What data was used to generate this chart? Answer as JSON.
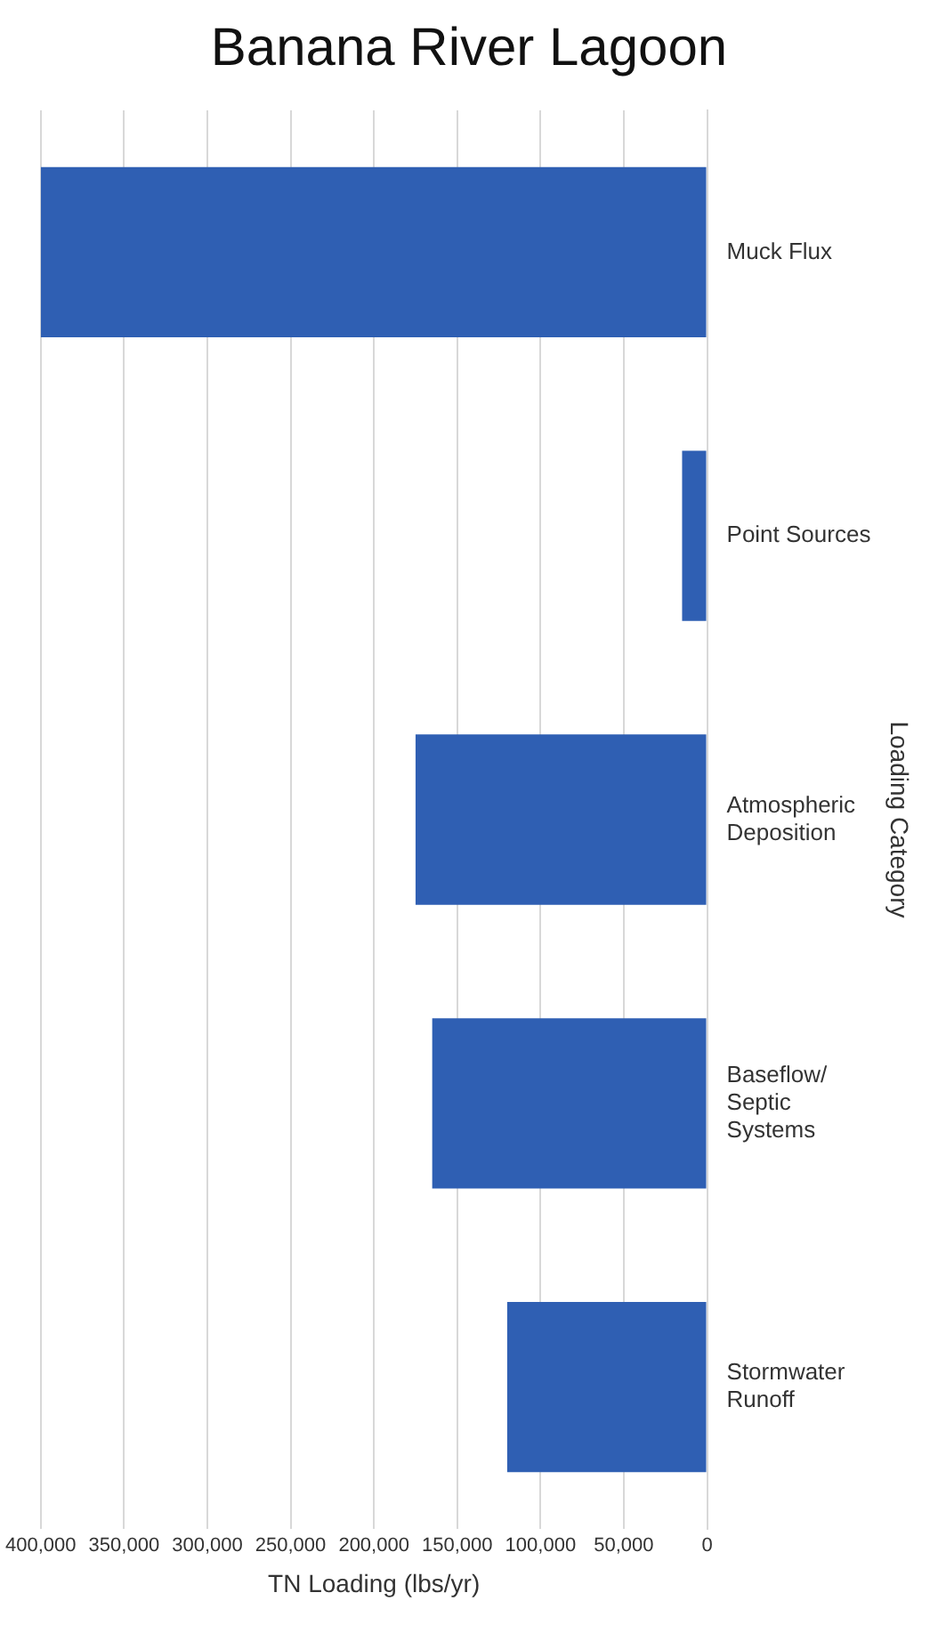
{
  "chart_data": {
    "type": "bar",
    "orientation": "horizontal",
    "title": "Banana River Lagoon",
    "xlabel": "TN Loading (lbs/yr)",
    "ylabel": "Loading Category",
    "categories": [
      "Muck Flux",
      "Point Sources",
      "Atmospheric Deposition",
      "Baseflow/Septic Systems",
      "Stormwater Runoff"
    ],
    "values": [
      400000,
      15000,
      175000,
      165000,
      120000
    ],
    "color": "#2f5fb3",
    "xlim": [
      400000,
      0
    ],
    "xticks": [
      {
        "value": 400000,
        "label": "400,000"
      },
      {
        "value": 350000,
        "label": "350,000"
      },
      {
        "value": 300000,
        "label": "300,000"
      },
      {
        "value": 250000,
        "label": "250,000"
      },
      {
        "value": 200000,
        "label": "200,000"
      },
      {
        "value": 150000,
        "label": "150,000"
      },
      {
        "value": 100000,
        "label": "100,000"
      },
      {
        "value": 50000,
        "label": "50,000"
      },
      0
    ],
    "grid": "x",
    "legend": false
  }
}
